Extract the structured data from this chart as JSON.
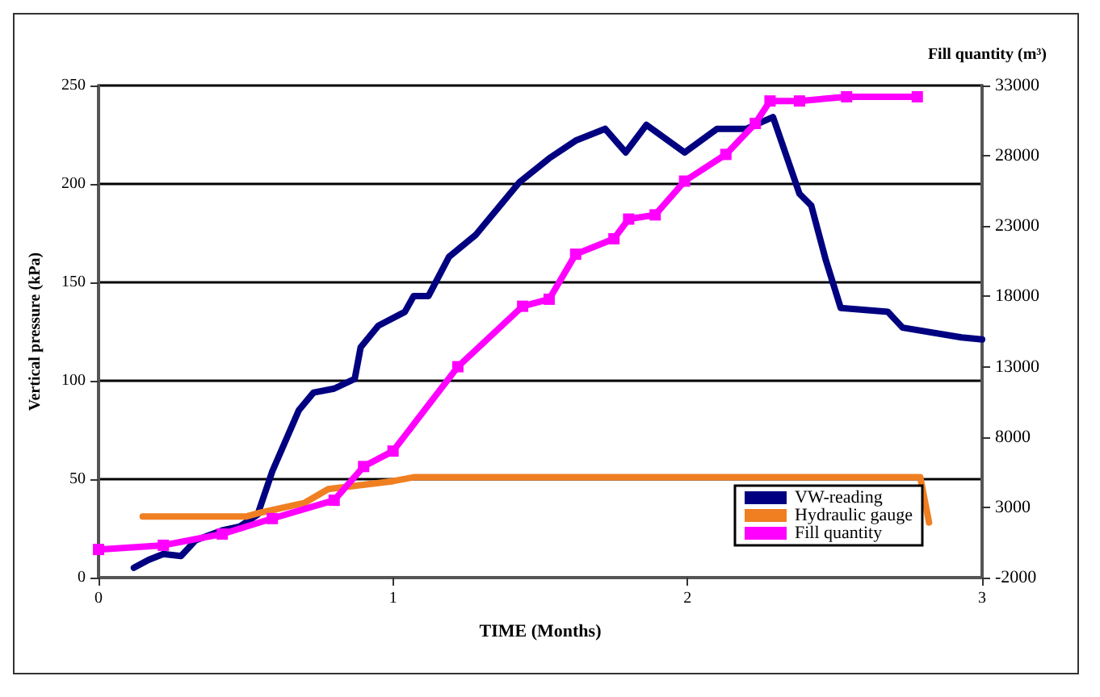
{
  "chart_data": {
    "type": "line",
    "xlabel": "TIME (Months)",
    "ylabel": "Vertical pressure (kPa)",
    "y2label": "Fill quantity (m³)",
    "xlim": [
      0,
      3
    ],
    "xticks": [
      0,
      1,
      2,
      3
    ],
    "ylim": [
      0,
      250
    ],
    "yticks": [
      0,
      50,
      100,
      150,
      200,
      250
    ],
    "y2lim": [
      -2000,
      33000
    ],
    "y2ticks": [
      -2000,
      3000,
      8000,
      13000,
      18000,
      23000,
      28000,
      33000
    ],
    "grid": "y",
    "legend": "bottom right",
    "line_style": "solid",
    "series": [
      {
        "name": "VW-reading",
        "color": "#000080",
        "marker": "none",
        "x": [
          0.12,
          0.17,
          0.22,
          0.28,
          0.33,
          0.42,
          0.48,
          0.54,
          0.59,
          0.68,
          0.73,
          0.8,
          0.87,
          0.89,
          0.95,
          1.04,
          1.07,
          1.12,
          1.19,
          1.28,
          1.43,
          1.53,
          1.62,
          1.72,
          1.79,
          1.86,
          1.99,
          2.1,
          2.2,
          2.29,
          2.38,
          2.42,
          2.47,
          2.52,
          2.68,
          2.73,
          2.93,
          3.0
        ],
        "values": [
          5,
          9,
          12,
          11,
          19,
          24,
          26,
          32,
          54,
          85,
          94,
          96,
          101,
          117,
          128,
          135,
          143,
          143,
          163,
          174,
          201,
          213,
          222,
          228,
          216,
          230,
          216,
          228,
          228,
          234,
          195,
          189,
          161,
          137,
          135,
          127,
          122,
          121
        ]
      },
      {
        "name": "Hydraulic gauge",
        "color": "#f07f22",
        "marker": "none",
        "x": [
          0.15,
          0.5,
          0.55,
          0.7,
          0.78,
          1.0,
          1.07,
          2.79,
          2.82
        ],
        "values": [
          31,
          31,
          33,
          38,
          45,
          49,
          51,
          51,
          28
        ]
      },
      {
        "name": "Fill quantity",
        "color": "#ff00ff",
        "marker": "square",
        "axis": "y2",
        "x": [
          0,
          0.22,
          0.42,
          0.59,
          0.8,
          0.9,
          1.0,
          1.22,
          1.44,
          1.53,
          1.62,
          1.75,
          1.8,
          1.89,
          1.99,
          2.13,
          2.23,
          2.28,
          2.38,
          2.54,
          2.78
        ],
        "values": [
          0,
          300,
          1100,
          2200,
          3500,
          5900,
          7000,
          13000,
          17300,
          17800,
          21000,
          22100,
          23500,
          23800,
          26200,
          28100,
          30300,
          31900,
          31900,
          32200,
          32200
        ]
      }
    ]
  }
}
